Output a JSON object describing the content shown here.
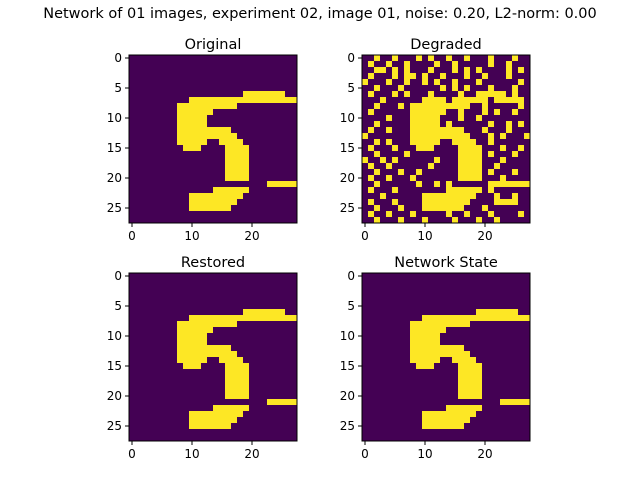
{
  "figure": {
    "suptitle": "Network of 01 images, experiment 02, image 01, noise: 0.20, L2-norm: 0.00"
  },
  "colors": {
    "background": "#440154",
    "foreground": "#fde725",
    "axes": "#000000"
  },
  "chart_data": [
    {
      "type": "heatmap",
      "title": "Original",
      "grid": false,
      "xlim": [
        -0.5,
        27.5
      ],
      "ylim": [
        27.5,
        -0.5
      ],
      "xticks": [
        "0",
        "10",
        "20"
      ],
      "yticks": [
        "0",
        "5",
        "10",
        "15",
        "20",
        "25"
      ],
      "pixels": [
        "............................",
        "............................",
        "............................",
        "............................",
        "............................",
        "............................",
        "...................#######..",
        "..........##################",
        "........##########..........",
        "........######..............",
        "........#####...............",
        "........#####...............",
        "........#########...........",
        "........##########..........",
        "........#####..####.........",
        ".........###....####........",
        "................####........",
        "................####........",
        "................####........",
        "................####........",
        "................####........",
        ".......................#####",
        "..............######........",
        "..........#########.........",
        "..........########..........",
        "..........#######...........",
        "............................",
        "............................"
      ]
    },
    {
      "type": "heatmap",
      "title": "Degraded",
      "grid": false,
      "xlim": [
        -0.5,
        27.5
      ],
      "ylim": [
        27.5,
        -0.5
      ],
      "xticks": [
        "0",
        "10",
        "20"
      ],
      "yticks": [
        "0",
        "5",
        "10",
        "15",
        "20",
        "25"
      ],
      "pixels": [
        "..#..#...#.#..#..#...#...#..",
        ".#..#..#....#..#.....#..#...",
        "..##.#.#...#...#.#.#....#.#.",
        ".#...#.##.#..#...#..#...#...",
        "#...#..#..#.#..#...#......#.",
        "..#...#......#.#.#...#...#..",
        ".#...#.#...#....#..#####.#..",
        "...#......####.######.#####.",
        "..#...#.##########..#.....#.",
        ".#......######..#...#.#..#..",
        "....#...#####...#..#........",
        "..#.....#####.#......#..#.#.",
        ".#..#...#########...#...#...",
        "#.......##########...#.#...#",
        "..#.#...#####..####..#......",
        ".#...#...###....####...#..#.",
        "..#....#........####.#...#..",
        "#..#.#......#...####...#....",
        ".#..#......#....####..#.....",
        "..#...#..#......####.#...#..",
        ".#..#...#.......####...#....",
        "..#......#..#.#......#######",
        ".#...#........######.#......",
        "...#......#########...#..#..",
        ".#...#....########....####..",
        "..#...#...#######...#.......",
        ".#..#...#.....#..#...#....#.",
        "..#...#...#....#...#..#....."
      ]
    },
    {
      "type": "heatmap",
      "title": "Restored",
      "grid": false,
      "xlim": [
        -0.5,
        27.5
      ],
      "ylim": [
        27.5,
        -0.5
      ],
      "xticks": [
        "0",
        "10",
        "20"
      ],
      "yticks": [
        "0",
        "5",
        "10",
        "15",
        "20",
        "25"
      ],
      "pixels": [
        "............................",
        "............................",
        "............................",
        "............................",
        "............................",
        "............................",
        "...................#######..",
        "..........##################",
        "........##########..........",
        "........######..............",
        "........#####...............",
        "........#####...............",
        "........#########...........",
        "........##########..........",
        "........#####..####.........",
        ".........###....####........",
        "................####........",
        "................####........",
        "................####........",
        "................####........",
        "................####........",
        ".......................#####",
        "..............######........",
        "..........#########.........",
        "..........########..........",
        "..........#######...........",
        "............................",
        "............................"
      ]
    },
    {
      "type": "heatmap",
      "title": "Network State",
      "grid": false,
      "xlim": [
        -0.5,
        27.5
      ],
      "ylim": [
        27.5,
        -0.5
      ],
      "xticks": [
        "0",
        "10",
        "20"
      ],
      "yticks": [
        "0",
        "5",
        "10",
        "15",
        "20",
        "25"
      ],
      "pixels": [
        "............................",
        "............................",
        "............................",
        "............................",
        "............................",
        "............................",
        "...................#######..",
        "..........##################",
        "........##########..........",
        "........######..............",
        "........#####...............",
        "........#####...............",
        "........#########...........",
        "........##########..........",
        "........#####..####.........",
        ".........###....####........",
        "................####........",
        "................####........",
        "................####........",
        "................####........",
        "................####........",
        ".......................#####",
        "..............######........",
        "..........#########.........",
        "..........########..........",
        "..........#######...........",
        "............................",
        "............................"
      ]
    }
  ]
}
